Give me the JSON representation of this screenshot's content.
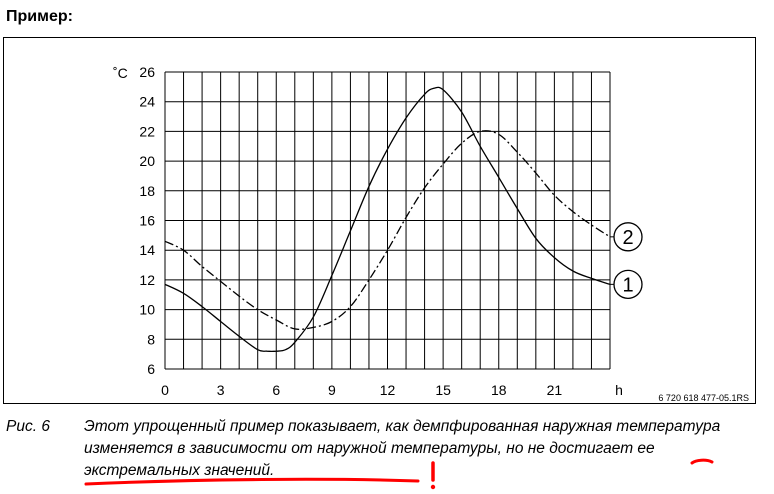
{
  "header": {
    "title": "Пример:"
  },
  "chart_data": {
    "type": "line",
    "ylabel": "˚C",
    "xlabel": "h",
    "ylim": [
      6,
      26
    ],
    "xlim": [
      0,
      24
    ],
    "y_ticks": [
      6,
      8,
      10,
      12,
      14,
      16,
      18,
      20,
      22,
      24,
      26
    ],
    "x_ticks": [
      0,
      3,
      6,
      9,
      12,
      15,
      18,
      21
    ],
    "grid": true,
    "series": [
      {
        "name": "1",
        "style": "solid",
        "x": [
          0,
          1,
          2,
          3,
          4,
          5,
          5.5,
          6,
          6.5,
          7,
          8,
          9,
          10,
          11,
          12,
          13,
          14,
          14.5,
          15,
          16,
          17,
          18,
          19,
          20,
          21,
          22,
          23,
          24
        ],
        "values": [
          11.7,
          11.1,
          10.2,
          9.2,
          8.2,
          7.3,
          7.2,
          7.2,
          7.3,
          7.8,
          9.5,
          12.3,
          15.3,
          18.3,
          20.8,
          22.9,
          24.5,
          24.9,
          24.8,
          23.3,
          21.0,
          18.9,
          16.8,
          14.8,
          13.5,
          12.6,
          12.1,
          11.7
        ]
      },
      {
        "name": "2",
        "style": "dash-dot",
        "x": [
          0,
          1,
          2,
          3,
          4,
          5,
          6,
          7,
          8,
          9,
          10,
          11,
          12,
          13,
          14,
          15,
          16,
          17,
          18,
          19,
          20,
          21,
          22,
          23,
          24
        ],
        "values": [
          14.6,
          14.0,
          12.9,
          11.9,
          10.9,
          10.0,
          9.3,
          8.7,
          8.8,
          9.2,
          10.2,
          12.0,
          14.0,
          16.2,
          18.2,
          19.8,
          21.2,
          22.0,
          21.8,
          20.6,
          19.2,
          17.7,
          16.6,
          15.7,
          14.9
        ]
      }
    ],
    "annotation": "6 720 618 477-05.1RS"
  },
  "caption": {
    "number": "Рис. 6",
    "text": "Этот упрощенный пример показывает, как демпфированная наружная температура изменяется в зависимости от наружной температуры, но не достигает ее экстремальных значений."
  },
  "colors": {
    "grid": "#000000",
    "curves": "#000000",
    "markup": "#ff0000"
  }
}
